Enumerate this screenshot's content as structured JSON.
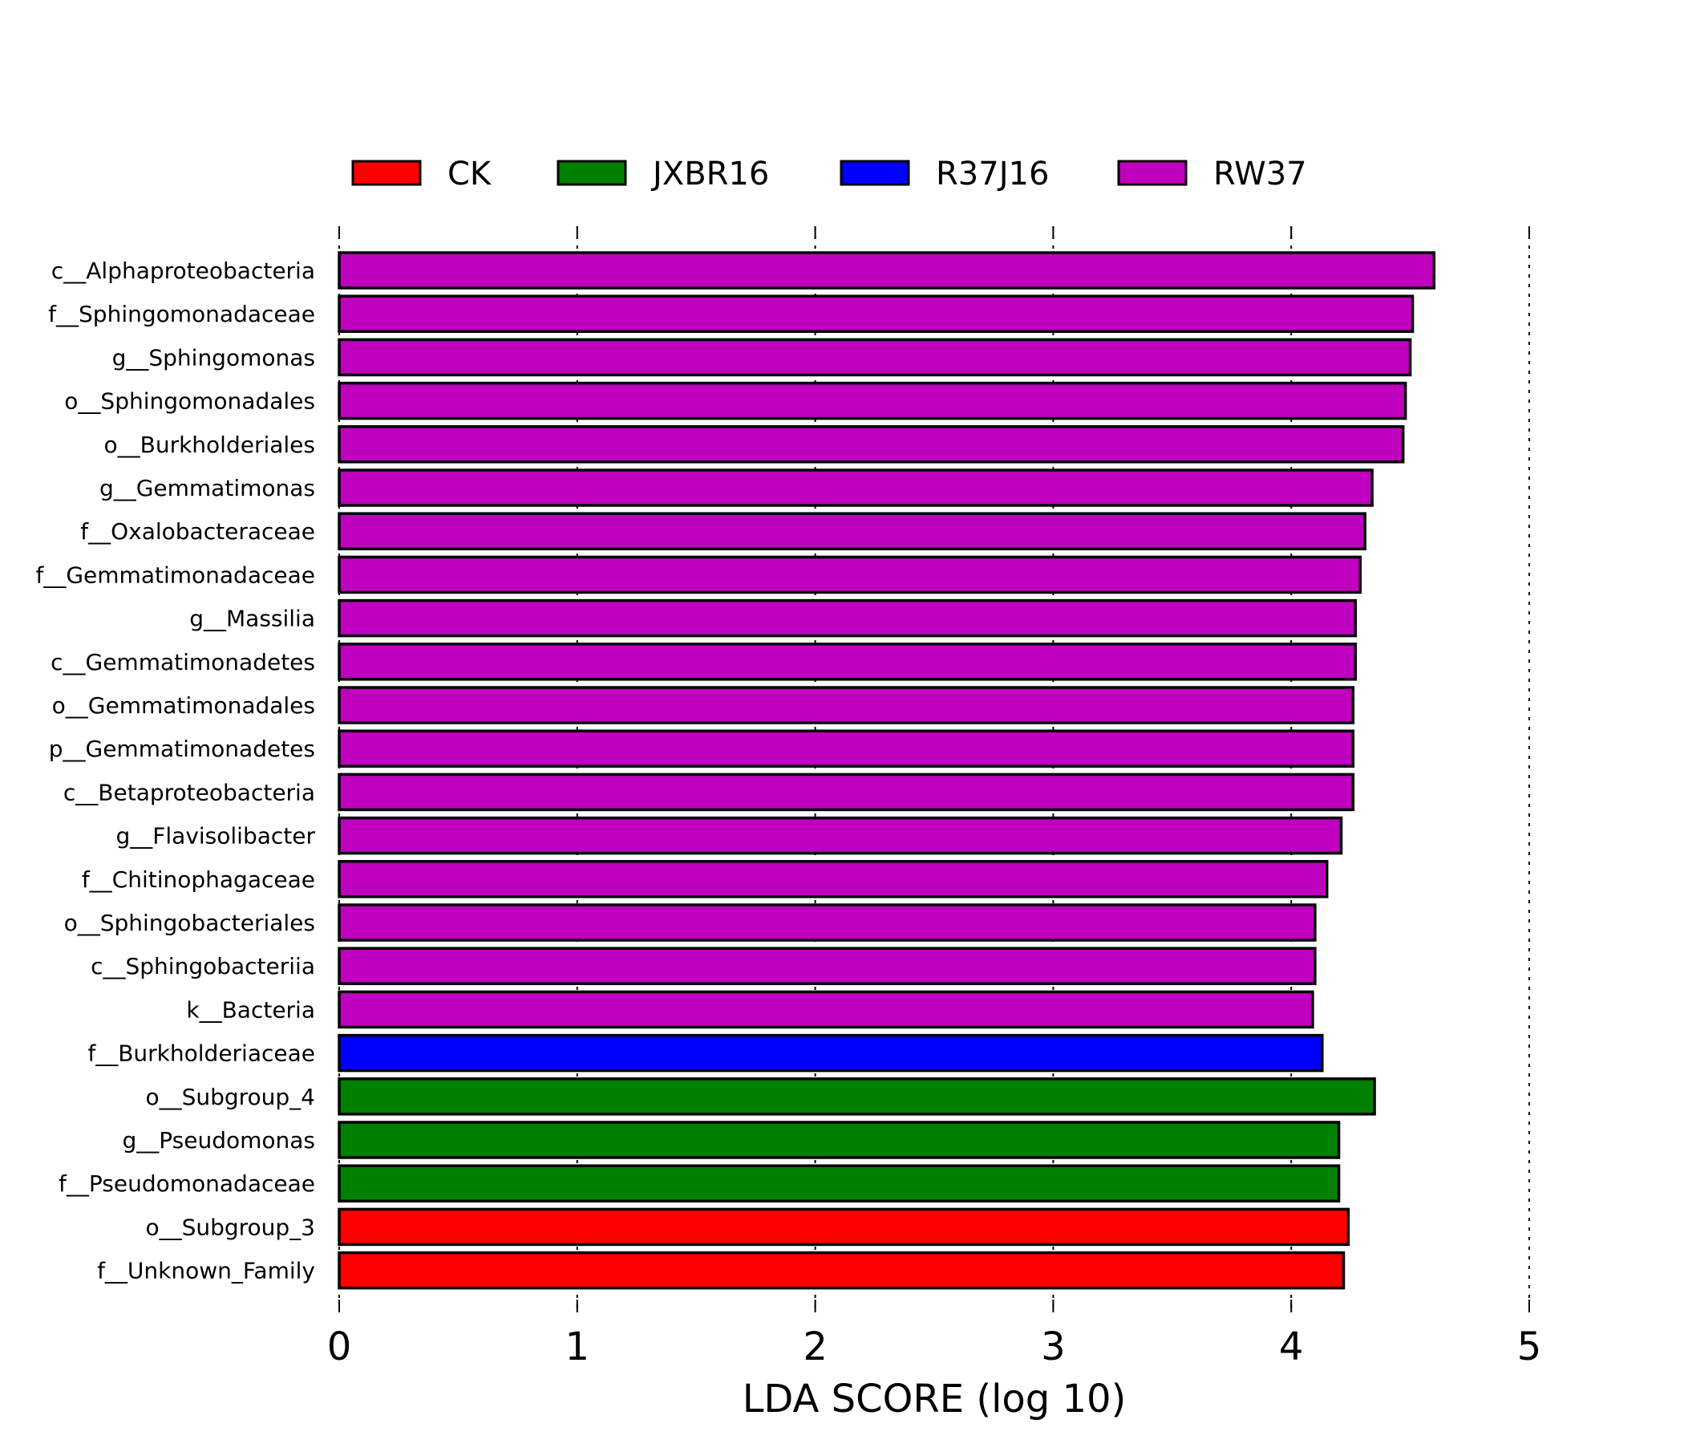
{
  "chart_data": {
    "type": "bar",
    "orientation": "horizontal",
    "xlabel": "LDA SCORE (log 10)",
    "xlim": [
      0,
      5
    ],
    "xticks": [
      "0",
      "1",
      "2",
      "3",
      "4",
      "5"
    ],
    "grid": "vertical-dotted",
    "legend_position": "top",
    "legend": [
      {
        "name": "CK",
        "color": "#ff0000"
      },
      {
        "name": "JXBR16",
        "color": "#008000"
      },
      {
        "name": "R37J16",
        "color": "#0000ff"
      },
      {
        "name": "RW37",
        "color": "#bf00bf"
      }
    ],
    "bars": [
      {
        "label": "c__Alphaproteobacteria",
        "value": 4.6,
        "group": "RW37"
      },
      {
        "label": "f__Sphingomonadaceae",
        "value": 4.51,
        "group": "RW37"
      },
      {
        "label": "g__Sphingomonas",
        "value": 4.5,
        "group": "RW37"
      },
      {
        "label": "o__Sphingomonadales",
        "value": 4.48,
        "group": "RW37"
      },
      {
        "label": "o__Burkholderiales",
        "value": 4.47,
        "group": "RW37"
      },
      {
        "label": "g__Gemmatimonas",
        "value": 4.34,
        "group": "RW37"
      },
      {
        "label": "f__Oxalobacteraceae",
        "value": 4.31,
        "group": "RW37"
      },
      {
        "label": "f__Gemmatimonadaceae",
        "value": 4.29,
        "group": "RW37"
      },
      {
        "label": "g__Massilia",
        "value": 4.27,
        "group": "RW37"
      },
      {
        "label": "c__Gemmatimonadetes",
        "value": 4.27,
        "group": "RW37"
      },
      {
        "label": "o__Gemmatimonadales",
        "value": 4.26,
        "group": "RW37"
      },
      {
        "label": "p__Gemmatimonadetes",
        "value": 4.26,
        "group": "RW37"
      },
      {
        "label": "c__Betaproteobacteria",
        "value": 4.26,
        "group": "RW37"
      },
      {
        "label": "g__Flavisolibacter",
        "value": 4.21,
        "group": "RW37"
      },
      {
        "label": "f__Chitinophagaceae",
        "value": 4.15,
        "group": "RW37"
      },
      {
        "label": "o__Sphingobacteriales",
        "value": 4.1,
        "group": "RW37"
      },
      {
        "label": "c__Sphingobacteriia",
        "value": 4.1,
        "group": "RW37"
      },
      {
        "label": "k__Bacteria",
        "value": 4.09,
        "group": "RW37"
      },
      {
        "label": "f__Burkholderiaceae",
        "value": 4.13,
        "group": "R37J16"
      },
      {
        "label": "o__Subgroup_4",
        "value": 4.35,
        "group": "JXBR16"
      },
      {
        "label": "g__Pseudomonas",
        "value": 4.2,
        "group": "JXBR16"
      },
      {
        "label": "f__Pseudomonadaceae",
        "value": 4.2,
        "group": "JXBR16"
      },
      {
        "label": "o__Subgroup_3",
        "value": 4.24,
        "group": "CK"
      },
      {
        "label": "f__Unknown_Family",
        "value": 4.22,
        "group": "CK"
      }
    ]
  }
}
